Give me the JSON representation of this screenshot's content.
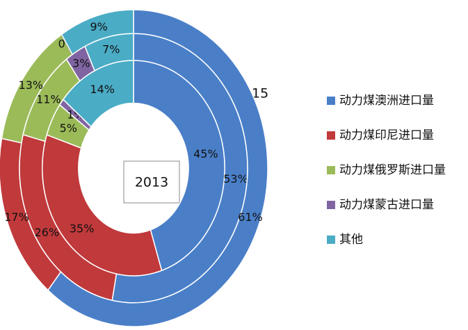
{
  "chart_data": {
    "type": "doughnut",
    "categories": [
      "动力煤澳洲进口量",
      "动力煤印尼进口量",
      "动力煤俄罗斯进口量",
      "动力煤蒙古进口量",
      "其他"
    ],
    "colors": [
      "#4a7fc8",
      "#c0393b",
      "#9bbb59",
      "#8064a2",
      "#4bacc6"
    ],
    "series": [
      {
        "name": "2013",
        "values": [
          45,
          35,
          5,
          1,
          14
        ],
        "value_labels": [
          "45%",
          "35%",
          "5%",
          "1%",
          "14%"
        ]
      },
      {
        "values": [
          53,
          26,
          11,
          3,
          7
        ],
        "value_labels": [
          "53%",
          "26%",
          "11%",
          "3%",
          "7%"
        ]
      },
      {
        "name": "2015",
        "values": [
          61,
          17,
          13,
          0,
          9
        ],
        "value_labels": [
          "61%",
          "17%",
          "13%",
          "0%",
          "9%"
        ]
      }
    ]
  }
}
